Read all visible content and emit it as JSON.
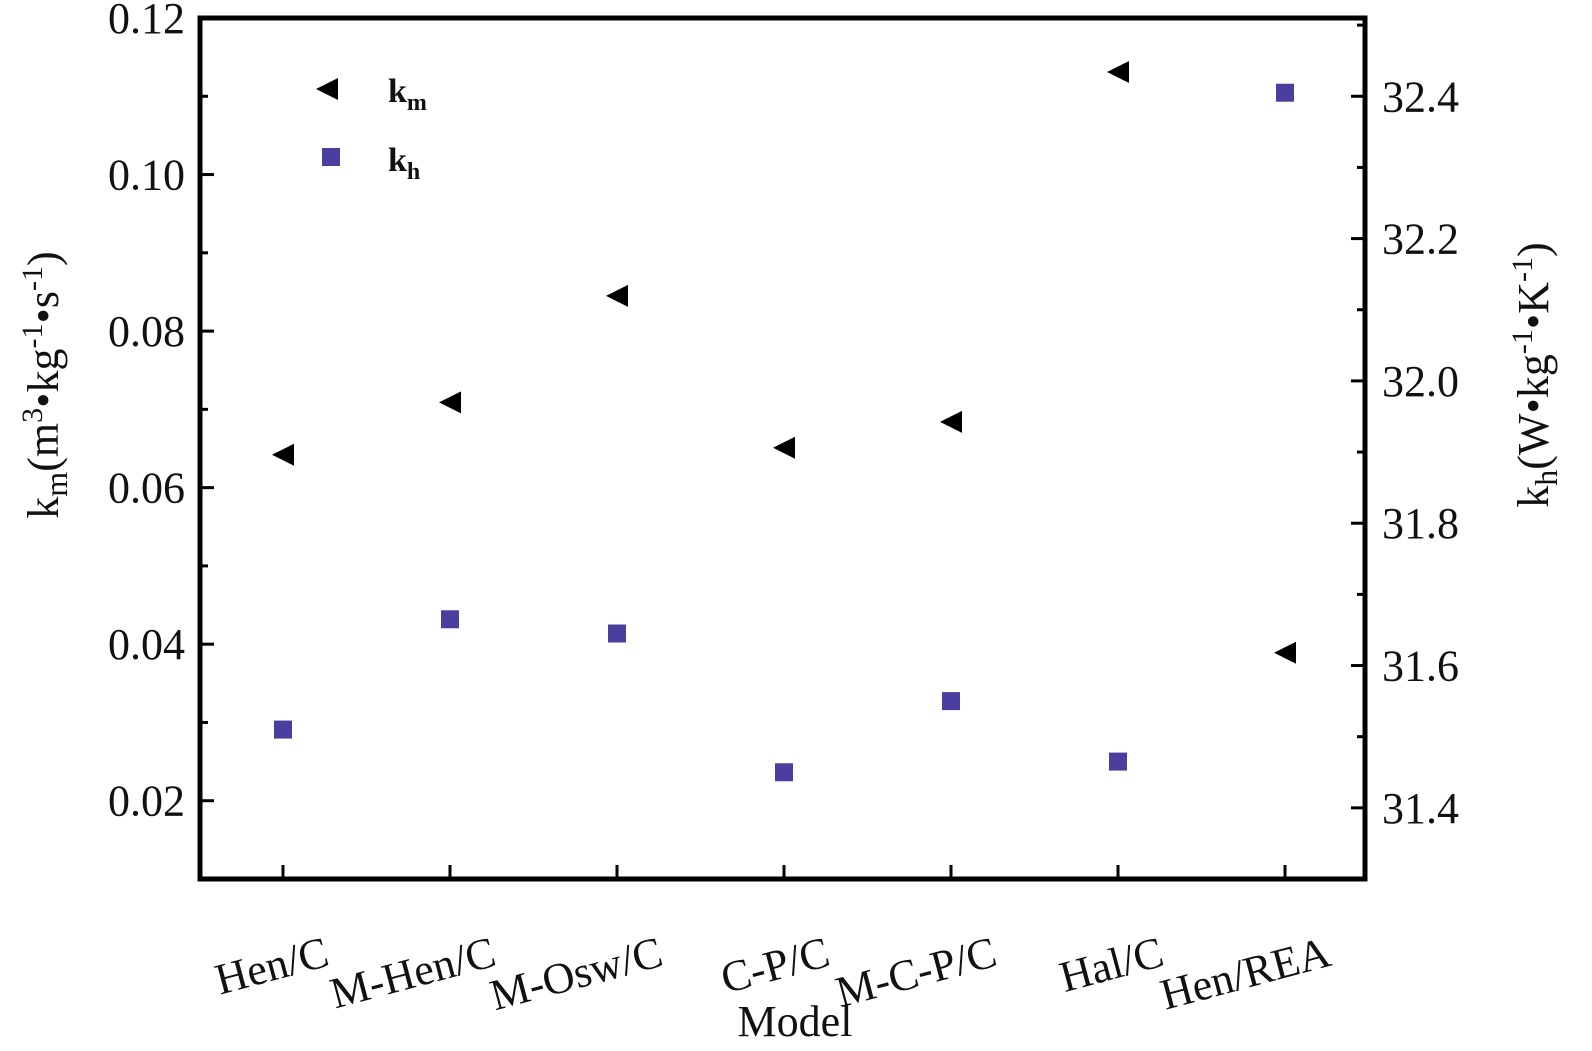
{
  "chart_data": {
    "type": "scatter",
    "categories": [
      "Hen/C",
      "M-Hen/C",
      "M-Osw/C",
      "C-P/C",
      "M-C-P/C",
      "Hal/C",
      "Hen/REA"
    ],
    "xlabel": "Model",
    "ylabel_left": {
      "base": "k",
      "sub": "m",
      "unit_open": "(m",
      "sup1": "3",
      "mid": "•kg",
      "sup2": "-1",
      "tail": "•s",
      "sup3": "-1",
      "close": ")"
    },
    "ylabel_right": {
      "base": "k",
      "sub": "h",
      "unit_open": "(W•kg",
      "sup1": "-1",
      "mid": "•K",
      "sup2": "-1",
      "close": ")"
    },
    "ylim_left": [
      0.01,
      0.12
    ],
    "ylim_right": [
      31.3,
      32.51
    ],
    "yticks_left": [
      "0.02",
      "0.04",
      "0.06",
      "0.08",
      "0.10",
      "0.12"
    ],
    "yticks_right": [
      "31.4",
      "31.6",
      "31.8",
      "32.0",
      "32.2",
      "32.4"
    ],
    "grid": false,
    "legend_position": "top-left",
    "series": [
      {
        "name": "km",
        "name_base": "k",
        "name_sub": "m",
        "axis": "left",
        "marker": "triangle-left",
        "color": "#000000",
        "values": [
          0.0642,
          0.0709,
          0.0845,
          0.0651,
          0.0684,
          0.1131,
          0.0389
        ]
      },
      {
        "name": "kh",
        "name_base": "k",
        "name_sub": "h",
        "axis": "right",
        "marker": "square",
        "color": "#4a3f9e",
        "values": [
          31.51,
          31.665,
          31.645,
          31.45,
          31.55,
          31.465,
          32.405
        ]
      }
    ]
  }
}
